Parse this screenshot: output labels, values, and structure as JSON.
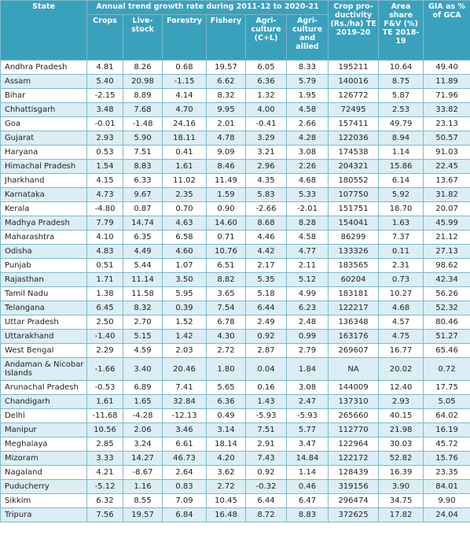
{
  "header": {
    "state": "State",
    "trend_group": "Annual trend growth rate during 2011-12 to 2020-21",
    "crops": "Crops",
    "livestock": "Live-stock",
    "forestry": "Forestry",
    "fishery": "Fishery",
    "agriculture_cl": "Agri-culture (C+L)",
    "agriculture_allied": "Agri-culture and allied",
    "crop_productivity": "Crop pro-ductivity (Rs./ha) TE 2019-20",
    "area_share": "Area share F&V (%) TE 2018-19",
    "gia": "GIA as % of GCA"
  },
  "rows": [
    {
      "state": "Andhra Pradesh",
      "v": [
        "4.81",
        "8.26",
        "0.68",
        "19.57",
        "6.05",
        "8.33",
        "195211",
        "10.64",
        "49.40"
      ]
    },
    {
      "state": "Assam",
      "v": [
        "5.40",
        "20.98",
        "-1.15",
        "6.62",
        "6.36",
        "5.79",
        "140016",
        "8.75",
        "11.89"
      ]
    },
    {
      "state": "Bihar",
      "v": [
        "-2.15",
        "8.89",
        "4.14",
        "8.32",
        "1.32",
        "1.95",
        "126772",
        "5.87",
        "71.96"
      ]
    },
    {
      "state": "Chhattisgarh",
      "v": [
        "3.48",
        "7.68",
        "4.70",
        "9.95",
        "4.00",
        "4.58",
        "72495",
        "2.53",
        "33.82"
      ]
    },
    {
      "state": "Goa",
      "v": [
        "-0.01",
        "-1.48",
        "24.16",
        "2.01",
        "-0.41",
        "2.66",
        "157411",
        "49.79",
        "23.13"
      ]
    },
    {
      "state": "Gujarat",
      "v": [
        "2.93",
        "5.90",
        "18.11",
        "4.78",
        "3.29",
        "4.28",
        "122036",
        "8.94",
        "50.57"
      ]
    },
    {
      "state": "Haryana",
      "v": [
        "0.53",
        "7.51",
        "0.41",
        "9.09",
        "3.21",
        "3.08",
        "174538",
        "1.14",
        "91.03"
      ]
    },
    {
      "state": "Himachal Pradesh",
      "v": [
        "1.54",
        "8.83",
        "1.61",
        "8.46",
        "2.96",
        "2.26",
        "204321",
        "15.86",
        "22.45"
      ]
    },
    {
      "state": "Jharkhand",
      "v": [
        "4.15",
        "6.33",
        "11.02",
        "11.49",
        "4.35",
        "4.68",
        "180552",
        "6.14",
        "13.67"
      ]
    },
    {
      "state": "Karnataka",
      "v": [
        "4.73",
        "9.67",
        "2.35",
        "1.59",
        "5.83",
        "5.33",
        "107750",
        "5.92",
        "31.82"
      ]
    },
    {
      "state": "Kerala",
      "v": [
        "-4.80",
        "0.87",
        "0.70",
        "0.90",
        "-2.66",
        "-2.01",
        "151751",
        "18.70",
        "20.07"
      ]
    },
    {
      "state": "Madhya Pradesh",
      "v": [
        "7.79",
        "14.74",
        "4.63",
        "14.60",
        "8.68",
        "8.28",
        "154041",
        "1.63",
        "45.99"
      ]
    },
    {
      "state": "Maharashtra",
      "v": [
        "4.10",
        "6.35",
        "6.58",
        "0.71",
        "4.46",
        "4.58",
        "86299",
        "7.37",
        "21.12"
      ]
    },
    {
      "state": "Odisha",
      "v": [
        "4.83",
        "4.49",
        "4.60",
        "10.76",
        "4.42",
        "4.77",
        "133326",
        "0.11",
        "27.13"
      ]
    },
    {
      "state": "Punjab",
      "v": [
        "0.51",
        "5.44",
        "1.07",
        "6.51",
        "2.17",
        "2.11",
        "183565",
        "2.31",
        "98.62"
      ]
    },
    {
      "state": "Rajasthan",
      "v": [
        "1.71",
        "11.14",
        "3.50",
        "8.82",
        "5.35",
        "5.12",
        "60204",
        "0.73",
        "42.34"
      ]
    },
    {
      "state": "Tamil Nadu",
      "v": [
        "1.38",
        "11.58",
        "5.95",
        "3.65",
        "5.18",
        "4.99",
        "183181",
        "10.27",
        "56.26"
      ]
    },
    {
      "state": "Telangana",
      "v": [
        "6.45",
        "8.32",
        "0.39",
        "7.54",
        "6.44",
        "6.23",
        "122217",
        "4.68",
        "52.32"
      ]
    },
    {
      "state": "Uttar Pradesh",
      "v": [
        "2.50",
        "2.70",
        "1.52",
        "6.78",
        "2.49",
        "2.48",
        "136348",
        "4.57",
        "80.46"
      ]
    },
    {
      "state": "Uttarakhand",
      "v": [
        "-1.40",
        "5.15",
        "1.42",
        "4.30",
        "0.92",
        "0.99",
        "163176",
        "4.75",
        "51.27"
      ]
    },
    {
      "state": "West Bengal",
      "v": [
        "2.29",
        "4.59",
        "2.03",
        "2.72",
        "2.87",
        "2.79",
        "269607",
        "16.77",
        "65.46"
      ]
    },
    {
      "state": "Andaman & Nicobar Islands",
      "v": [
        "-1.66",
        "3.40",
        "20.46",
        "1.80",
        "0.04",
        "1.84",
        "NA",
        "20.02",
        "0.72"
      ]
    },
    {
      "state": "Arunachal Pradesh",
      "v": [
        "-0.53",
        "6.89",
        "7.41",
        "5.65",
        "0.16",
        "3.08",
        "144009",
        "12.40",
        "17.75"
      ]
    },
    {
      "state": "Chandigarh",
      "v": [
        "1.61",
        "1.65",
        "32.84",
        "6.36",
        "1.43",
        "2.47",
        "137310",
        "2.93",
        "5.05"
      ]
    },
    {
      "state": "Delhi",
      "v": [
        "-11.68",
        "-4.28",
        "-12.13",
        "0.49",
        "-5.93",
        "-5.93",
        "265660",
        "40.15",
        "64.02"
      ]
    },
    {
      "state": "Manipur",
      "v": [
        "10.56",
        "2.06",
        "3.46",
        "3.14",
        "7.51",
        "5.77",
        "112770",
        "21.98",
        "16.19"
      ]
    },
    {
      "state": "Meghalaya",
      "v": [
        "2.85",
        "3.24",
        "6.61",
        "18.14",
        "2.91",
        "3.47",
        "122964",
        "30.03",
        "45.72"
      ]
    },
    {
      "state": "Mizoram",
      "v": [
        "3.33",
        "14.27",
        "46.73",
        "4.20",
        "7.43",
        "14.84",
        "122172",
        "52.82",
        "15.76"
      ]
    },
    {
      "state": "Nagaland",
      "v": [
        "4.21",
        "-8.67",
        "2.64",
        "3.62",
        "0.92",
        "1.14",
        "128439",
        "16.39",
        "23.35"
      ]
    },
    {
      "state": "Puducherry",
      "v": [
        "-5.12",
        "1.16",
        "0.83",
        "2.72",
        "-0.32",
        "0.46",
        "319156",
        "3.90",
        "84.01"
      ]
    },
    {
      "state": "Sikkim",
      "v": [
        "6.32",
        "8.55",
        "7.09",
        "10.45",
        "6.44",
        "6.47",
        "296474",
        "34.75",
        "9.90"
      ]
    },
    {
      "state": "Tripura",
      "v": [
        "7.56",
        "19.57",
        "6.84",
        "16.48",
        "8.72",
        "8.83",
        "372625",
        "17.82",
        "24.04"
      ]
    }
  ]
}
